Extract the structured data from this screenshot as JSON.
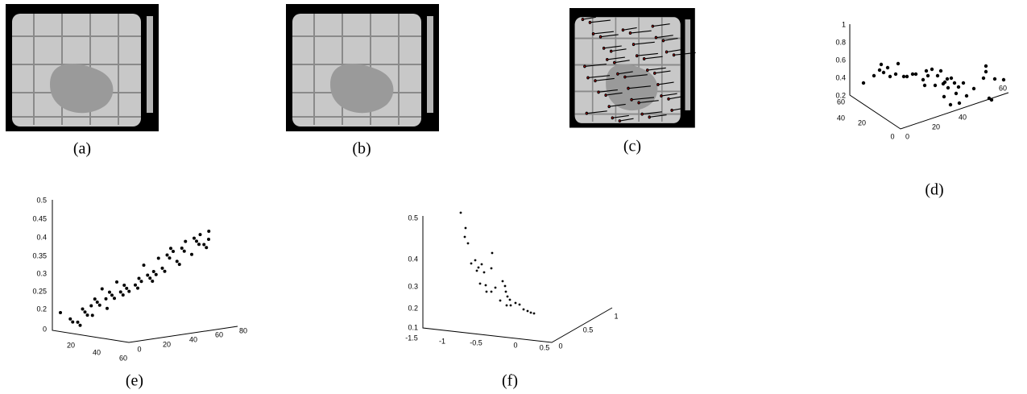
{
  "panels": [
    {
      "label": "(a)"
    },
    {
      "label": "(b)"
    },
    {
      "label": "(c)"
    },
    {
      "label": "(d)"
    },
    {
      "label": "(e)"
    },
    {
      "label": "(f)"
    }
  ],
  "plot_d": {
    "zticks": [
      1,
      0.8,
      0.6,
      0.4,
      0.2
    ],
    "left_ticks": [
      60,
      40,
      20,
      0
    ],
    "right_ticks": [
      0,
      20,
      40,
      60
    ]
  },
  "plot_e": {
    "zticks": [
      0.5,
      0.45,
      0.4,
      0.35,
      0.3,
      0.25,
      0.2,
      0
    ],
    "left_ticks": [
      20,
      40,
      60
    ],
    "right_ticks": [
      0,
      20,
      40,
      60,
      80
    ]
  },
  "plot_f": {
    "zticks": [
      0.5,
      0.4,
      0.3,
      0.2,
      0.1
    ],
    "left_ticks": [
      -1.5,
      -1,
      -0.5,
      0,
      0.5
    ],
    "right_ticks": [
      0,
      0.5,
      1
    ]
  }
}
